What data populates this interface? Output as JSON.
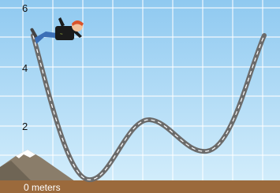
{
  "grid_labels": [
    "6",
    "4",
    "2"
  ],
  "ground_label": "0 meters"
}
